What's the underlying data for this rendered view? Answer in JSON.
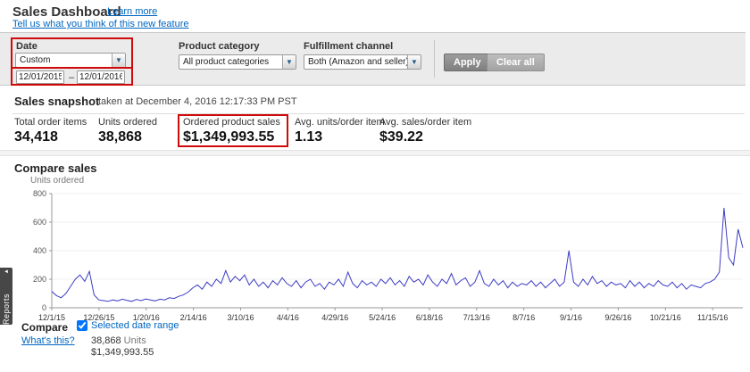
{
  "header": {
    "title": "Sales Dashboard",
    "learn_more": "Learn more",
    "feedback": "Tell us what you think of this new feature"
  },
  "filters": {
    "date": {
      "label": "Date",
      "selected": "Custom",
      "from": "12/01/2015",
      "separator": "–",
      "to": "12/01/2016"
    },
    "product_category": {
      "label": "Product category",
      "selected": "All product categories"
    },
    "fulfillment_channel": {
      "label": "Fulfillment channel",
      "selected": "Both (Amazon and seller)"
    },
    "apply": "Apply",
    "clear_all": "Clear all"
  },
  "snapshot": {
    "title": "Sales snapshot",
    "taken_at": "taken at December 4, 2016 12:17:33 PM PST",
    "metrics": [
      {
        "label": "Total order items",
        "value": "34,418"
      },
      {
        "label": "Units ordered",
        "value": "38,868"
      },
      {
        "label": "Ordered product sales",
        "value": "$1,349,993.55"
      },
      {
        "label": "Avg. units/order item",
        "value": "1.13"
      },
      {
        "label": "Avg. sales/order item",
        "value": "$39.22"
      }
    ]
  },
  "compare": {
    "title": "Compare sales",
    "label": "Compare",
    "whats_this": "What's this?",
    "checkbox_label": "Selected date range",
    "units_value": "38,868",
    "units_word": "Units",
    "sales_value": "$1,349,993.55"
  },
  "side_tab": {
    "label": "Reports",
    "arrow": "◄"
  },
  "chart_data": {
    "type": "line",
    "title": "Compare sales",
    "ylabel": "Units ordered",
    "xlabel": "",
    "ylim": [
      0,
      800
    ],
    "yticks": [
      0,
      200,
      400,
      600,
      800
    ],
    "x_tick_labels": [
      "12/1/15",
      "12/26/15",
      "1/20/16",
      "2/14/16",
      "3/10/16",
      "4/4/16",
      "4/29/16",
      "5/24/16",
      "6/18/16",
      "7/13/16",
      "8/7/16",
      "9/1/16",
      "9/26/16",
      "10/21/16",
      "11/15/16"
    ],
    "tick_interval_days": 25,
    "total_days": 366,
    "grid": "horizontal-faint",
    "legend_position": "none",
    "line_color": "#3c3cc4",
    "series": [
      {
        "name": "Selected date range",
        "values": [
          115,
          85,
          70,
          100,
          150,
          200,
          230,
          185,
          255,
          90,
          55,
          50,
          45,
          55,
          48,
          60,
          52,
          45,
          58,
          50,
          62,
          55,
          48,
          60,
          55,
          70,
          65,
          80,
          90,
          110,
          140,
          160,
          130,
          180,
          150,
          200,
          170,
          260,
          180,
          220,
          190,
          230,
          160,
          200,
          150,
          180,
          140,
          190,
          160,
          210,
          170,
          150,
          190,
          140,
          180,
          200,
          150,
          170,
          130,
          180,
          160,
          200,
          150,
          250,
          170,
          140,
          190,
          160,
          180,
          150,
          200,
          170,
          210,
          160,
          190,
          150,
          220,
          180,
          200,
          160,
          230,
          180,
          150,
          200,
          170,
          240,
          160,
          190,
          210,
          150,
          180,
          260,
          170,
          150,
          200,
          160,
          190,
          140,
          180,
          150,
          170,
          160,
          190,
          150,
          180,
          140,
          170,
          200,
          150,
          180,
          400,
          180,
          150,
          200,
          160,
          220,
          170,
          190,
          150,
          180,
          160,
          170,
          140,
          190,
          150,
          180,
          140,
          170,
          150,
          190,
          160,
          150,
          180,
          140,
          170,
          130,
          160,
          150,
          140,
          170,
          180,
          200,
          250,
          700,
          350,
          300,
          550,
          420
        ]
      }
    ]
  }
}
